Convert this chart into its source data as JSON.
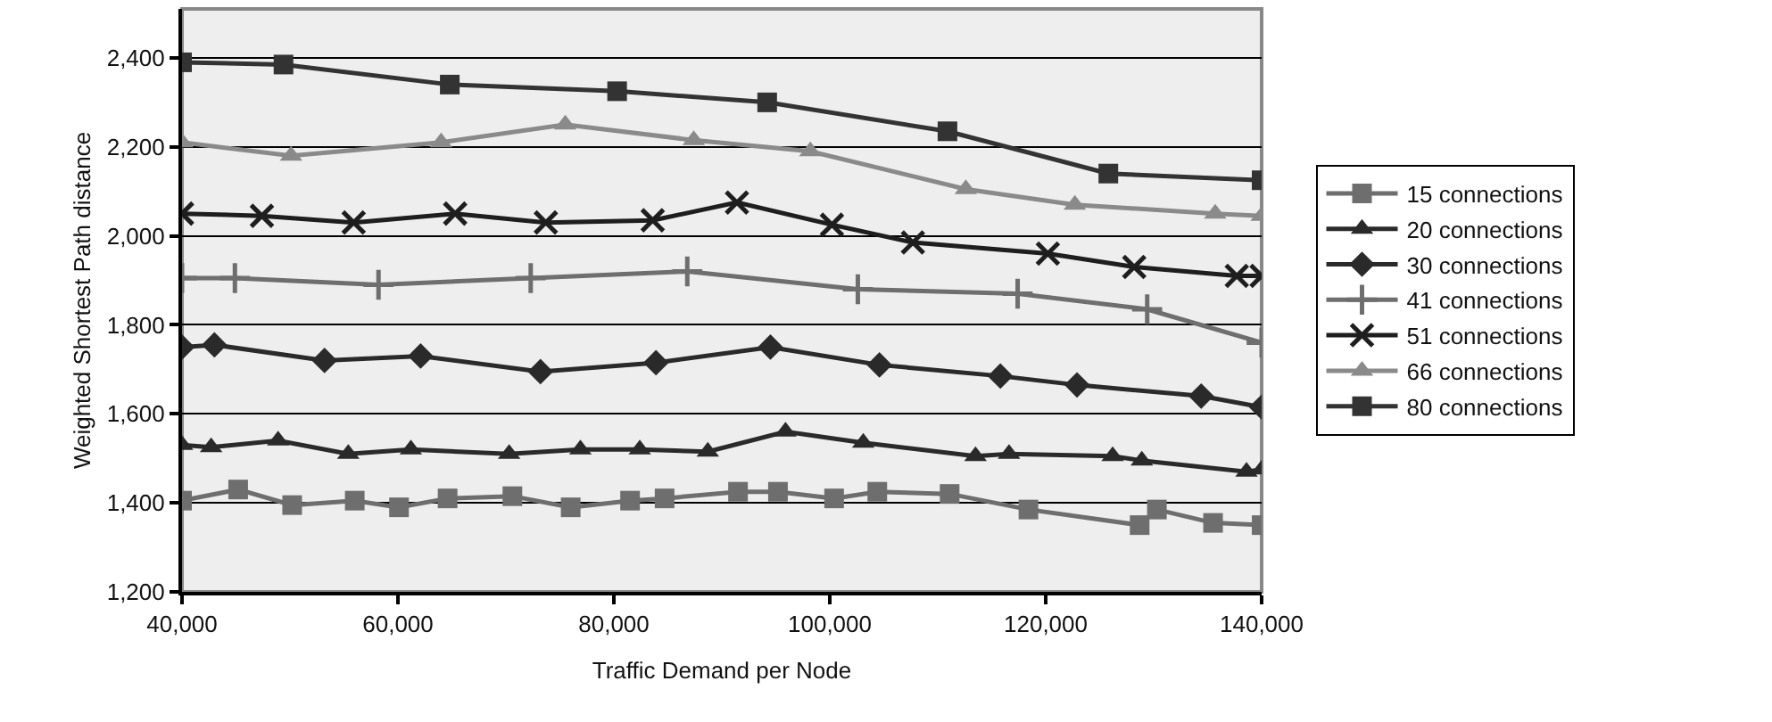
{
  "chart_data": {
    "type": "line",
    "xlabel": "Traffic Demand per Node",
    "ylabel": "Weighted Shortest Path distance",
    "xlim": [
      40000,
      140000
    ],
    "xticks": [
      {
        "value": 40000,
        "label": "40,000"
      },
      {
        "value": 60000,
        "label": "60,000"
      },
      {
        "value": 80000,
        "label": "80,000"
      },
      {
        "value": 100000,
        "label": "100,000"
      },
      {
        "value": 120000,
        "label": "120,000"
      },
      {
        "value": 140000,
        "label": "140,000"
      }
    ],
    "ylim": [
      1200,
      2510
    ],
    "yticks": [
      {
        "value": 1200,
        "label": "1,200"
      },
      {
        "value": 1400,
        "label": "1,400"
      },
      {
        "value": 1600,
        "label": "1,600"
      },
      {
        "value": 1800,
        "label": "1,800"
      },
      {
        "value": 2000,
        "label": "2,000"
      },
      {
        "value": 2200,
        "label": "2,200"
      },
      {
        "value": 2400,
        "label": "2,400"
      }
    ],
    "grid": "y",
    "legend": "right",
    "series": [
      {
        "name": "15 connections",
        "color": "#6e6e6e",
        "marker": "square",
        "x": [
          40000,
          45200,
          50200,
          56000,
          60100,
          64600,
          70600,
          76000,
          81500,
          84700,
          91500,
          95200,
          100400,
          104400,
          111100,
          118400,
          128700,
          130300,
          135500,
          140000
        ],
        "values": [
          1405,
          1430,
          1395,
          1405,
          1390,
          1410,
          1415,
          1390,
          1405,
          1410,
          1425,
          1425,
          1410,
          1425,
          1420,
          1385,
          1350,
          1385,
          1355,
          1350
        ]
      },
      {
        "name": "20 connections",
        "color": "#2a2a2a",
        "marker": "triangle",
        "x": [
          40000,
          42700,
          48900,
          55400,
          61200,
          70300,
          76900,
          82400,
          88700,
          95900,
          103100,
          113500,
          116600,
          126200,
          128900,
          138600,
          140000
        ],
        "values": [
          1530,
          1525,
          1540,
          1510,
          1520,
          1510,
          1520,
          1520,
          1515,
          1560,
          1535,
          1505,
          1510,
          1505,
          1495,
          1470,
          1475
        ]
      },
      {
        "name": "30 connections",
        "color": "#2a2a2a",
        "marker": "diamond",
        "x": [
          40000,
          43000,
          53200,
          62100,
          73200,
          83900,
          94500,
          104600,
          115800,
          122900,
          134400,
          140000
        ],
        "values": [
          1750,
          1755,
          1720,
          1730,
          1695,
          1715,
          1750,
          1710,
          1685,
          1665,
          1640,
          1615
        ]
      },
      {
        "name": "41 connections",
        "color": "#6e6e6e",
        "marker": "cross",
        "x": [
          40000,
          44900,
          58200,
          72300,
          86800,
          102600,
          117400,
          129400,
          140000
        ],
        "values": [
          1905,
          1905,
          1890,
          1905,
          1920,
          1880,
          1870,
          1835,
          1760
        ]
      },
      {
        "name": "51 connections",
        "color": "#1e1e1e",
        "marker": "x",
        "x": [
          40000,
          47400,
          55900,
          65300,
          73700,
          83600,
          91400,
          100200,
          107700,
          120200,
          128200,
          137700,
          140000
        ],
        "values": [
          2050,
          2045,
          2030,
          2050,
          2030,
          2035,
          2075,
          2025,
          1985,
          1960,
          1930,
          1910,
          1910
        ]
      },
      {
        "name": "66 connections",
        "color": "#8a8a8a",
        "marker": "triangle",
        "x": [
          40000,
          50100,
          64000,
          75500,
          87400,
          98200,
          112600,
          122700,
          135700,
          140000
        ],
        "values": [
          2210,
          2180,
          2210,
          2250,
          2215,
          2190,
          2105,
          2070,
          2050,
          2045
        ]
      },
      {
        "name": "80 connections",
        "color": "#333333",
        "marker": "square",
        "x": [
          40000,
          49400,
          64800,
          80300,
          94200,
          110900,
          125800,
          140000
        ],
        "values": [
          2390,
          2385,
          2340,
          2325,
          2300,
          2235,
          2140,
          2125
        ]
      }
    ]
  }
}
